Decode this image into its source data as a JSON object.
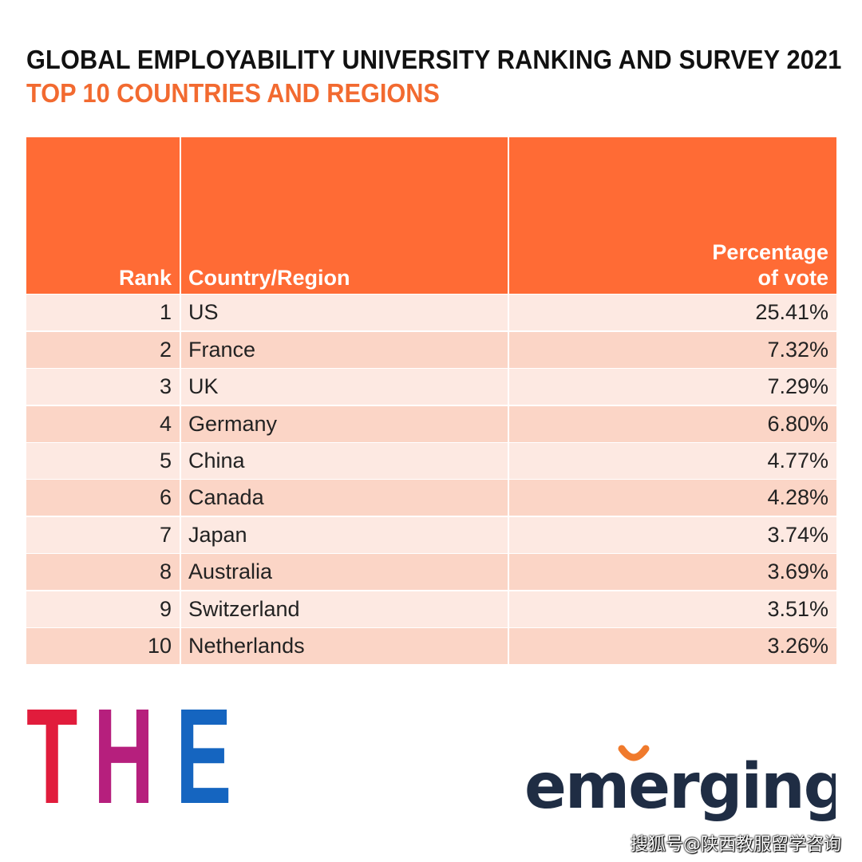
{
  "colors": {
    "header_bg": "#ff6b35",
    "row_odd": "#fde9e2",
    "row_even": "#fbd5c6",
    "subtitle": "#f26a30",
    "the_t": "#e11c3c",
    "the_h": "#b61f7d",
    "the_e": "#1565c0",
    "emerging_text": "#1f2d44",
    "emerging_smile": "#f07a2c"
  },
  "title": "GLOBAL EMPLOYABILITY UNIVERSITY RANKING AND SURVEY 2021",
  "subtitle": "TOP 10 COUNTRIES AND REGIONS",
  "chart_data": {
    "type": "table",
    "title": "GLOBAL EMPLOYABILITY UNIVERSITY RANKING AND SURVEY 2021",
    "subtitle": "TOP 10 COUNTRIES AND REGIONS",
    "columns": [
      "Rank",
      "Country/Region",
      "Percentage\nof vote"
    ],
    "rows": [
      {
        "rank": "1",
        "country": "US",
        "percentage": "25.41%"
      },
      {
        "rank": "2",
        "country": "France",
        "percentage": "7.32%"
      },
      {
        "rank": "3",
        "country": "UK",
        "percentage": "7.29%"
      },
      {
        "rank": "4",
        "country": "Germany",
        "percentage": "6.80%"
      },
      {
        "rank": "5",
        "country": "China",
        "percentage": "4.77%"
      },
      {
        "rank": "6",
        "country": "Canada",
        "percentage": "4.28%"
      },
      {
        "rank": "7",
        "country": "Japan",
        "percentage": "3.74%"
      },
      {
        "rank": "8",
        "country": "Australia",
        "percentage": "3.69%"
      },
      {
        "rank": "9",
        "country": "Switzerland",
        "percentage": "3.51%"
      },
      {
        "rank": "10",
        "country": "Netherlands",
        "percentage": "3.26%"
      }
    ]
  },
  "logos": {
    "the": "THE",
    "emerging": "emerging"
  },
  "watermark": "搜狐号@陕西教服留学咨询"
}
